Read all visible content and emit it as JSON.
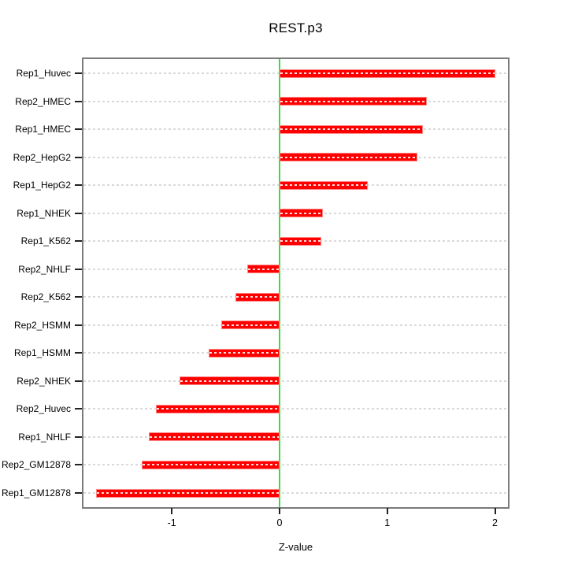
{
  "chart_data": {
    "type": "bar",
    "orientation": "horizontal",
    "title": "REST.p3",
    "xlabel": "Z-value",
    "categories": [
      "Rep1_Huvec",
      "Rep2_HMEC",
      "Rep1_HMEC",
      "Rep2_HepG2",
      "Rep1_HepG2",
      "Rep1_NHEK",
      "Rep1_K562",
      "Rep2_NHLF",
      "Rep2_K562",
      "Rep2_HSMM",
      "Rep1_HSMM",
      "Rep2_NHEK",
      "Rep2_Huvec",
      "Rep1_NHLF",
      "Rep2_GM12878",
      "Rep1_GM12878"
    ],
    "values": [
      2.0,
      1.37,
      1.33,
      1.28,
      0.82,
      0.4,
      0.39,
      -0.3,
      -0.41,
      -0.54,
      -0.66,
      -0.93,
      -1.15,
      -1.21,
      -1.28,
      -1.7
    ],
    "x_ticks": [
      -1,
      0,
      1,
      2
    ],
    "xlim": [
      -1.835,
      2.135
    ],
    "baseline": 0,
    "grid": "dashed-horizontal",
    "legend": "none",
    "colors": {
      "bar": "#ff0000",
      "bar_edge": "#ff8585",
      "zero_line": "#3ddc3d",
      "gridline": "#d9d9d9",
      "frame": "#7b7b7b",
      "text": "#000000"
    }
  }
}
